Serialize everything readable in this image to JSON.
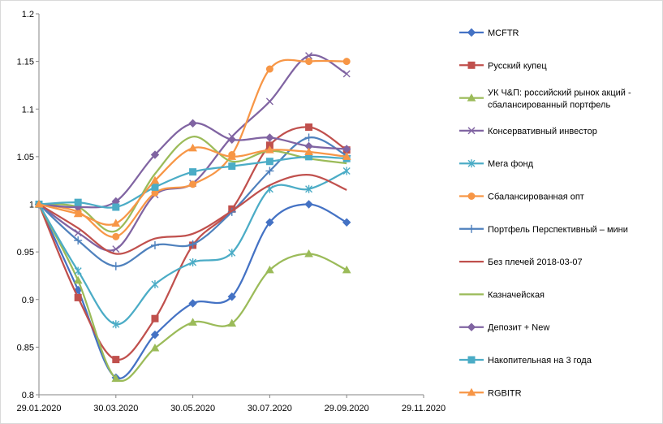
{
  "chart_data": {
    "type": "line",
    "title": "",
    "xlabel": "",
    "ylabel": "",
    "ylim": [
      0.8,
      1.2
    ],
    "y_ticks": [
      "0.8",
      "0.85",
      "0.9",
      "0.95",
      "1",
      "1.05",
      "1.1",
      "1.15",
      "1.2"
    ],
    "x_ticks": [
      "29.01.2020",
      "30.03.2020",
      "30.05.2020",
      "30.07.2020",
      "29.09.2020",
      "29.11.2020"
    ],
    "x_tick_values": [
      "2020-01-29",
      "2020-03-30",
      "2020-05-30",
      "2020-07-30",
      "2020-09-29",
      "2020-11-29"
    ],
    "xlim": [
      "2020-01-29",
      "2020-11-29"
    ],
    "grid": false,
    "legend_position": "right",
    "x": [
      "2020-01-29",
      "2020-02-29",
      "2020-03-30",
      "2020-04-30",
      "2020-05-30",
      "2020-06-30",
      "2020-07-30",
      "2020-08-30",
      "2020-09-29"
    ],
    "series": [
      {
        "name": "MCFTR",
        "color": "#4472C4",
        "marker": "diamond",
        "values": [
          1.0,
          0.91,
          0.818,
          0.863,
          0.896,
          0.903,
          0.981,
          1.0,
          0.981
        ]
      },
      {
        "name": "Русский купец",
        "color": "#C0504D",
        "marker": "square",
        "values": [
          1.0,
          0.902,
          0.837,
          0.88,
          0.957,
          0.995,
          1.062,
          1.081,
          1.057
        ]
      },
      {
        "name": "УК Ч&П:  российский рынок акций - сбалансированный портфель",
        "color": "#9BBB59",
        "marker": "triangle",
        "values": [
          1.0,
          0.92,
          0.817,
          0.849,
          0.876,
          0.875,
          0.931,
          0.948,
          0.931
        ]
      },
      {
        "name": "Консервативный инвестор",
        "color": "#8064A2",
        "marker": "x",
        "values": [
          1.0,
          0.97,
          0.953,
          1.01,
          1.022,
          1.071,
          1.108,
          1.156,
          1.137
        ]
      },
      {
        "name": "Мега фонд",
        "color": "#4BACC6",
        "marker": "star",
        "values": [
          1.0,
          0.93,
          0.874,
          0.916,
          0.939,
          0.949,
          1.016,
          1.016,
          1.035
        ]
      },
      {
        "name": "Сбалансированная опт",
        "color": "#F79646",
        "marker": "circle",
        "values": [
          1.0,
          0.992,
          0.966,
          1.012,
          1.021,
          1.052,
          1.142,
          1.15,
          1.15
        ]
      },
      {
        "name": "Портфель  Перспективный  – мини",
        "color": "#4F81BD",
        "marker": "plus",
        "values": [
          1.0,
          0.962,
          0.935,
          0.957,
          0.958,
          0.992,
          1.035,
          1.07,
          1.051
        ]
      },
      {
        "name": "Без плечей  2018-03-07",
        "color": "#C0504D",
        "marker": "none",
        "values": [
          1.0,
          0.975,
          0.948,
          0.964,
          0.969,
          0.993,
          1.02,
          1.031,
          1.015
        ]
      },
      {
        "name": "Казначейская",
        "color": "#9BBB59",
        "marker": "none",
        "values": [
          1.0,
          0.997,
          0.972,
          1.032,
          1.071,
          1.045,
          1.056,
          1.048,
          1.043
        ]
      },
      {
        "name": "Депозит + New",
        "color": "#8064A2",
        "marker": "diamond",
        "values": [
          1.0,
          0.997,
          1.003,
          1.052,
          1.085,
          1.068,
          1.07,
          1.061,
          1.058
        ]
      },
      {
        "name": "Накопительная на 3 года",
        "color": "#4BACC6",
        "marker": "square",
        "values": [
          1.0,
          1.002,
          0.997,
          1.018,
          1.034,
          1.04,
          1.045,
          1.05,
          1.048
        ]
      },
      {
        "name": "RGBITR",
        "color": "#F79646",
        "marker": "triangle",
        "values": [
          1.0,
          0.99,
          0.98,
          1.025,
          1.059,
          1.05,
          1.057,
          1.055,
          1.05
        ]
      }
    ]
  }
}
